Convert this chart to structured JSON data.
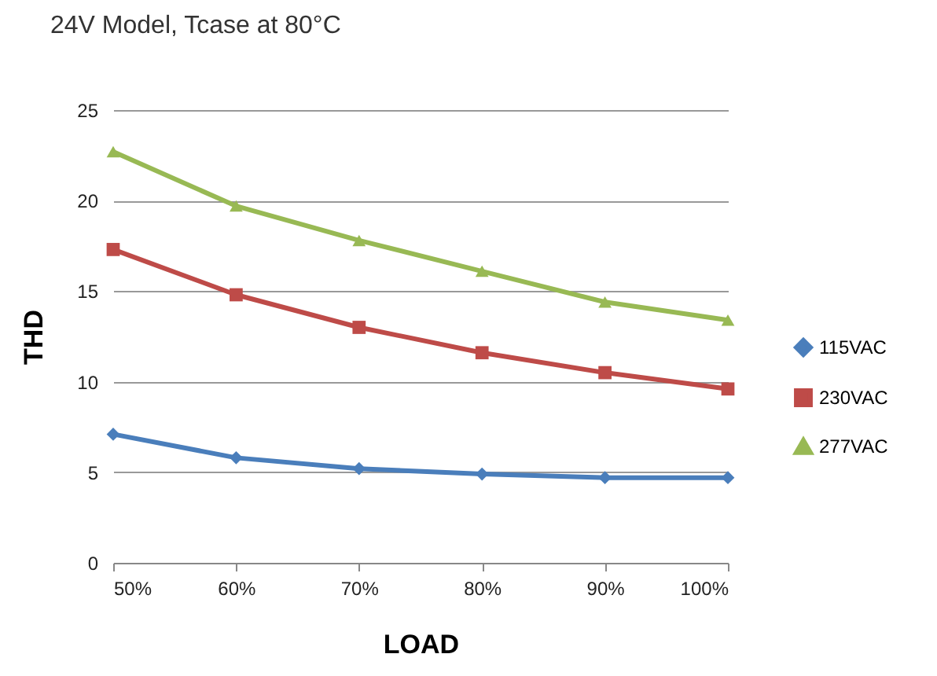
{
  "chart_data": {
    "type": "line",
    "title": "24V Model, Tcase at 80°C",
    "xlabel": "LOAD",
    "ylabel": "THD",
    "categories": [
      "50%",
      "60%",
      "70%",
      "80%",
      "90%",
      "100%"
    ],
    "series": [
      {
        "name": "115VAC",
        "color": "#4a7ebb",
        "marker": "diamond",
        "values": [
          7.1,
          5.8,
          5.2,
          4.9,
          4.7,
          4.7
        ]
      },
      {
        "name": "230VAC",
        "color": "#be4b48",
        "marker": "square",
        "values": [
          17.3,
          14.8,
          13.0,
          11.6,
          10.5,
          9.6
        ]
      },
      {
        "name": "277VAC",
        "color": "#98b954",
        "marker": "triangle",
        "values": [
          22.7,
          19.7,
          17.8,
          16.1,
          14.4,
          13.4
        ]
      }
    ],
    "ylim": [
      0,
      25
    ],
    "yticks": [
      0,
      5,
      10,
      15,
      20,
      25
    ],
    "grid": "y",
    "legend": "right"
  }
}
